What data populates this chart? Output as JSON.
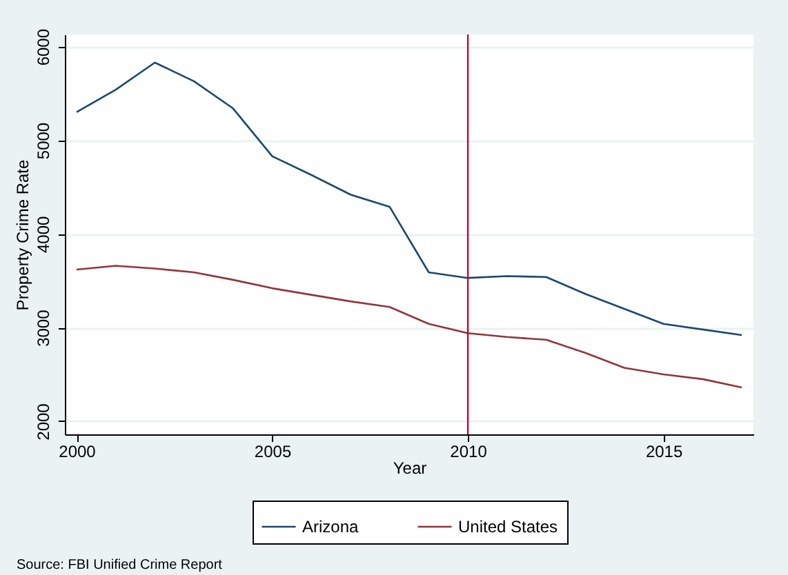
{
  "chart_data": {
    "type": "line",
    "xlabel": "Year",
    "ylabel": "Property Crime Rate",
    "x": [
      2000,
      2001,
      2002,
      2003,
      2004,
      2005,
      2006,
      2007,
      2008,
      2009,
      2010,
      2011,
      2012,
      2013,
      2014,
      2015,
      2016,
      2017
    ],
    "series": [
      {
        "name": "Arizona",
        "color": "#1a476f",
        "values": [
          5300,
          5540,
          5830,
          5630,
          5340,
          4830,
          4630,
          4420,
          4290,
          3590,
          3530,
          3550,
          3540,
          3360,
          3200,
          3040,
          2980,
          2920
        ]
      },
      {
        "name": "United States",
        "color": "#90353b",
        "values": [
          3620,
          3660,
          3630,
          3590,
          3510,
          3420,
          3350,
          3280,
          3220,
          3040,
          2940,
          2900,
          2870,
          2730,
          2570,
          2500,
          2450,
          2360
        ]
      }
    ],
    "xlim": [
      1999.7,
      2017.3
    ],
    "xticks": [
      2000,
      2005,
      2010,
      2015
    ],
    "ylim": [
      1860,
      6130
    ],
    "yticks": [
      2000,
      3000,
      4000,
      5000,
      6000
    ],
    "grid": "y",
    "legend": "bottom",
    "line_style": "solid",
    "ref_lines": [
      {
        "axis": "x",
        "value": 2010,
        "color": "#c10534"
      }
    ],
    "annotations": [
      "Source: FBI Unified Crime Report"
    ]
  }
}
